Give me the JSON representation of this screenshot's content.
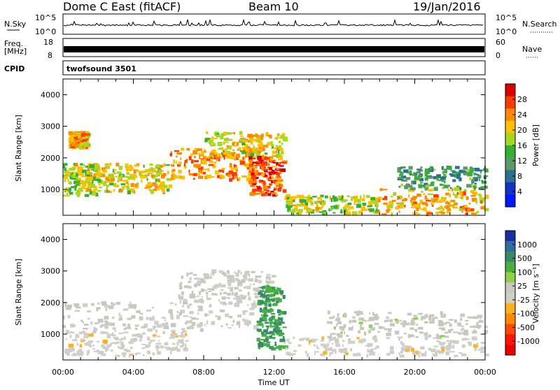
{
  "header": {
    "radar": "Dome C East (fitACF)",
    "beam": "Beam 10",
    "date": "19/Jan/2016"
  },
  "sky_panel": {
    "left_label": "N.Sky",
    "left_ticks": [
      "10^5",
      "10^0"
    ],
    "right_label": "N.Search",
    "right_ticks": [
      "10^5",
      "10^0"
    ]
  },
  "freq_panel": {
    "left_label_line1": "Freq.",
    "left_label_line2": "[MHz]",
    "left_ticks": [
      "18",
      "8"
    ],
    "right_label": "Nave",
    "right_ticks": [
      "60",
      "0"
    ]
  },
  "cpid_panel": {
    "label": "CPID",
    "value": "twofsound 3501"
  },
  "power_panel": {
    "ylabel": "Slant Range [km]",
    "yticks": [
      "4000",
      "3000",
      "2000",
      "1000"
    ],
    "colorbar_label": "Power [dB]",
    "colorbar_ticks": [
      "28",
      "24",
      "20",
      "16",
      "12",
      "8",
      "4"
    ],
    "colorbar_colors": [
      "#dd0000",
      "#ff3a00",
      "#ff8a00",
      "#ffc000",
      "#a8d81e",
      "#35b035",
      "#5a9a6a",
      "#2d6f8f",
      "#1232c8",
      "#0018ff"
    ]
  },
  "velocity_panel": {
    "ylabel": "Slant Range [km]",
    "yticks": [
      "4000",
      "3000",
      "2000",
      "1000"
    ],
    "colorbar_label": "Velocity [m s⁻¹]",
    "colorbar_ticks": [
      "1000",
      "500",
      "100",
      "25",
      "-25",
      "-100",
      "-500",
      "-1000"
    ],
    "colorbar_colors": [
      "#1a2ea0",
      "#2f6aa0",
      "#3a8a6a",
      "#46b040",
      "#8ed04a",
      "#c8c8c0",
      "#cfcfca",
      "#ffb020",
      "#ff8a00",
      "#ff4a00",
      "#ff1500",
      "#ee0000"
    ]
  },
  "xaxis": {
    "label": "Time UT",
    "ticks": [
      "00:00",
      "04:00",
      "08:00",
      "12:00",
      "16:00",
      "20:00",
      "00:00"
    ]
  },
  "chart_data": [
    {
      "type": "heatmap",
      "title": "Power",
      "xlabel": "Time UT",
      "ylabel": "Slant Range [km]",
      "xlim": [
        0,
        24
      ],
      "ylim": [
        180,
        4500
      ],
      "color_label": "Power [dB]",
      "color_range": [
        0,
        32
      ],
      "regions": [
        {
          "t": [
            0.0,
            2.0
          ],
          "range_km": [
            800,
            1800
          ],
          "value_db": 18
        },
        {
          "t": [
            0.3,
            1.3
          ],
          "range_km": [
            2300,
            2800
          ],
          "value_db": 22
        },
        {
          "t": [
            2.0,
            6.0
          ],
          "range_km": [
            900,
            1800
          ],
          "value_db": 20
        },
        {
          "t": [
            6.0,
            11.0
          ],
          "range_km": [
            1300,
            2300
          ],
          "value_db": 24
        },
        {
          "t": [
            8.0,
            12.5
          ],
          "range_km": [
            2000,
            2800
          ],
          "value_db": 20
        },
        {
          "t": [
            10.5,
            12.5
          ],
          "range_km": [
            800,
            2000
          ],
          "value_db": 26
        },
        {
          "t": [
            12.5,
            18.0
          ],
          "range_km": [
            200,
            800
          ],
          "value_db": 18
        },
        {
          "t": [
            18.0,
            24.0
          ],
          "range_km": [
            200,
            1000
          ],
          "value_db": 22
        },
        {
          "t": [
            19.0,
            24.0
          ],
          "range_km": [
            1000,
            1700
          ],
          "value_db": 12
        }
      ]
    },
    {
      "type": "heatmap",
      "title": "Velocity",
      "xlabel": "Time UT",
      "ylabel": "Slant Range [km]",
      "xlim": [
        0,
        24
      ],
      "ylim": [
        180,
        4500
      ],
      "color_label": "Velocity [m s-1]",
      "color_range": [
        -1000,
        1000
      ],
      "regions": [
        {
          "t": [
            0.0,
            7.0
          ],
          "range_km": [
            300,
            1100
          ],
          "value_ms": -100
        },
        {
          "t": [
            0.0,
            11.0
          ],
          "range_km": [
            1100,
            2000
          ],
          "value_ms": 0
        },
        {
          "t": [
            6.5,
            12.0
          ],
          "range_km": [
            2000,
            3000
          ],
          "value_ms": 0
        },
        {
          "t": [
            11.0,
            12.5
          ],
          "range_km": [
            500,
            2500
          ],
          "value_ms": 500
        },
        {
          "t": [
            12.5,
            24.0
          ],
          "range_km": [
            300,
            900
          ],
          "value_ms": -100
        },
        {
          "t": [
            15.0,
            24.0
          ],
          "range_km": [
            900,
            1700
          ],
          "value_ms": 100
        }
      ]
    }
  ]
}
